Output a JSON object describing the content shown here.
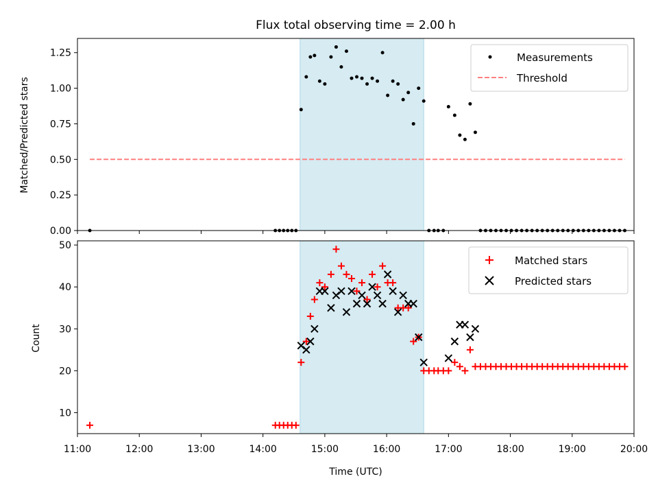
{
  "figure": {
    "title": "Flux total observing time = 2.00 h",
    "shaded_span": {
      "start": "14:36",
      "end": "16:36",
      "color": "#add8e6"
    }
  },
  "chart_data": [
    {
      "type": "scatter",
      "id": "ratio",
      "title": "Flux total observing time = 2.00 h",
      "xlabel": "",
      "ylabel": "Matched/Predicted stars",
      "xlim": [
        "11:00",
        "20:00"
      ],
      "ylim": [
        0,
        1.35
      ],
      "yticks": [
        0.0,
        0.25,
        0.5,
        0.75,
        1.0,
        1.25
      ],
      "ytick_labels": [
        "0.00",
        "0.25",
        "0.50",
        "0.75",
        "1.00",
        "1.25"
      ],
      "grid": false,
      "legend": {
        "position": "upper right",
        "entries": [
          "Measurements",
          "Threshold"
        ]
      },
      "series": [
        {
          "name": "Measurements",
          "marker": "dot",
          "color": "#000000",
          "points": [
            [
              "11:12",
              0
            ],
            [
              "14:12",
              0
            ],
            [
              "14:16",
              0
            ],
            [
              "14:20",
              0
            ],
            [
              "14:24",
              0
            ],
            [
              "14:28",
              0
            ],
            [
              "14:32",
              0
            ],
            [
              "14:37",
              0.85
            ],
            [
              "14:42",
              1.08
            ],
            [
              "14:46",
              1.22
            ],
            [
              "14:50",
              1.23
            ],
            [
              "14:55",
              1.05
            ],
            [
              "15:00",
              1.03
            ],
            [
              "15:06",
              1.22
            ],
            [
              "15:11",
              1.29
            ],
            [
              "15:16",
              1.15
            ],
            [
              "15:21",
              1.26
            ],
            [
              "15:26",
              1.07
            ],
            [
              "15:31",
              1.08
            ],
            [
              "15:36",
              1.07
            ],
            [
              "15:41",
              1.03
            ],
            [
              "15:46",
              1.07
            ],
            [
              "15:51",
              1.05
            ],
            [
              "15:56",
              1.25
            ],
            [
              "16:01",
              0.95
            ],
            [
              "16:06",
              1.05
            ],
            [
              "16:11",
              1.03
            ],
            [
              "16:16",
              0.92
            ],
            [
              "16:21",
              0.97
            ],
            [
              "16:26",
              0.75
            ],
            [
              "16:31",
              1.0
            ],
            [
              "16:36",
              0.91
            ],
            [
              "16:41",
              0
            ],
            [
              "16:46",
              0
            ],
            [
              "16:50",
              0
            ],
            [
              "16:55",
              0
            ],
            [
              "17:00",
              0.87
            ],
            [
              "17:06",
              0.81
            ],
            [
              "17:11",
              0.67
            ],
            [
              "17:16",
              0.64
            ],
            [
              "17:21",
              0.89
            ],
            [
              "17:26",
              0.69
            ],
            [
              "17:31",
              0
            ],
            [
              "17:36",
              0
            ],
            [
              "17:41",
              0
            ],
            [
              "17:46",
              0
            ],
            [
              "17:51",
              0
            ],
            [
              "17:56",
              0
            ],
            [
              "18:01",
              0
            ],
            [
              "18:06",
              0
            ],
            [
              "18:11",
              0
            ],
            [
              "18:16",
              0
            ],
            [
              "18:21",
              0
            ],
            [
              "18:26",
              0
            ],
            [
              "18:31",
              0
            ],
            [
              "18:36",
              0
            ],
            [
              "18:41",
              0
            ],
            [
              "18:46",
              0
            ],
            [
              "18:51",
              0
            ],
            [
              "18:56",
              0
            ],
            [
              "19:01",
              0
            ],
            [
              "19:06",
              0
            ],
            [
              "19:11",
              0
            ],
            [
              "19:16",
              0
            ],
            [
              "19:21",
              0
            ],
            [
              "19:26",
              0
            ],
            [
              "19:31",
              0
            ],
            [
              "19:36",
              0
            ],
            [
              "19:41",
              0
            ],
            [
              "19:46",
              0
            ],
            [
              "19:51",
              0
            ]
          ]
        },
        {
          "name": "Threshold",
          "style": "dashed-line",
          "color": "#ff7f7f",
          "points": [
            [
              "11:12",
              0.5
            ],
            [
              "19:51",
              0.5
            ]
          ]
        }
      ]
    },
    {
      "type": "scatter",
      "id": "counts",
      "xlabel": "Time (UTC)",
      "ylabel": "Count",
      "xlim": [
        "11:00",
        "20:00"
      ],
      "xticks": [
        "11:00",
        "12:00",
        "13:00",
        "14:00",
        "15:00",
        "16:00",
        "17:00",
        "18:00",
        "19:00",
        "20:00"
      ],
      "ylim": [
        5,
        51
      ],
      "yticks": [
        10,
        20,
        30,
        40,
        50
      ],
      "grid": false,
      "legend": {
        "position": "upper right",
        "entries": [
          "Matched stars",
          "Predicted stars"
        ]
      },
      "series": [
        {
          "name": "Matched stars",
          "marker": "plus",
          "color": "#ff0000",
          "points": [
            [
              "11:12",
              7
            ],
            [
              "14:12",
              7
            ],
            [
              "14:16",
              7
            ],
            [
              "14:20",
              7
            ],
            [
              "14:24",
              7
            ],
            [
              "14:28",
              7
            ],
            [
              "14:32",
              7
            ],
            [
              "14:37",
              22
            ],
            [
              "14:42",
              27
            ],
            [
              "14:46",
              33
            ],
            [
              "14:50",
              37
            ],
            [
              "14:55",
              41
            ],
            [
              "15:00",
              40
            ],
            [
              "15:06",
              43
            ],
            [
              "15:11",
              49
            ],
            [
              "15:16",
              45
            ],
            [
              "15:21",
              43
            ],
            [
              "15:26",
              42
            ],
            [
              "15:31",
              39
            ],
            [
              "15:36",
              41
            ],
            [
              "15:41",
              37
            ],
            [
              "15:46",
              43
            ],
            [
              "15:51",
              40
            ],
            [
              "15:56",
              45
            ],
            [
              "16:01",
              41
            ],
            [
              "16:06",
              41
            ],
            [
              "16:11",
              35
            ],
            [
              "16:16",
              35
            ],
            [
              "16:21",
              35
            ],
            [
              "16:26",
              27
            ],
            [
              "16:31",
              28
            ],
            [
              "16:36",
              20
            ],
            [
              "16:41",
              20
            ],
            [
              "16:46",
              20
            ],
            [
              "16:50",
              20
            ],
            [
              "16:55",
              20
            ],
            [
              "17:00",
              20
            ],
            [
              "17:06",
              22
            ],
            [
              "17:11",
              21
            ],
            [
              "17:16",
              20
            ],
            [
              "17:21",
              25
            ],
            [
              "17:26",
              21
            ],
            [
              "17:31",
              21
            ],
            [
              "17:36",
              21
            ],
            [
              "17:41",
              21
            ],
            [
              "17:46",
              21
            ],
            [
              "17:51",
              21
            ],
            [
              "17:56",
              21
            ],
            [
              "18:01",
              21
            ],
            [
              "18:06",
              21
            ],
            [
              "18:11",
              21
            ],
            [
              "18:16",
              21
            ],
            [
              "18:21",
              21
            ],
            [
              "18:26",
              21
            ],
            [
              "18:31",
              21
            ],
            [
              "18:36",
              21
            ],
            [
              "18:41",
              21
            ],
            [
              "18:46",
              21
            ],
            [
              "18:51",
              21
            ],
            [
              "18:56",
              21
            ],
            [
              "19:01",
              21
            ],
            [
              "19:06",
              21
            ],
            [
              "19:11",
              21
            ],
            [
              "19:16",
              21
            ],
            [
              "19:21",
              21
            ],
            [
              "19:26",
              21
            ],
            [
              "19:31",
              21
            ],
            [
              "19:36",
              21
            ],
            [
              "19:41",
              21
            ],
            [
              "19:46",
              21
            ],
            [
              "19:51",
              21
            ]
          ]
        },
        {
          "name": "Predicted stars",
          "marker": "x",
          "color": "#000000",
          "points": [
            [
              "14:37",
              26
            ],
            [
              "14:42",
              25
            ],
            [
              "14:46",
              27
            ],
            [
              "14:50",
              30
            ],
            [
              "14:55",
              39
            ],
            [
              "15:00",
              39
            ],
            [
              "15:06",
              35
            ],
            [
              "15:11",
              38
            ],
            [
              "15:16",
              39
            ],
            [
              "15:21",
              34
            ],
            [
              "15:26",
              39
            ],
            [
              "15:31",
              36
            ],
            [
              "15:36",
              38
            ],
            [
              "15:41",
              36
            ],
            [
              "15:46",
              40
            ],
            [
              "15:51",
              38
            ],
            [
              "15:56",
              36
            ],
            [
              "16:01",
              43
            ],
            [
              "16:06",
              39
            ],
            [
              "16:11",
              34
            ],
            [
              "16:16",
              38
            ],
            [
              "16:21",
              36
            ],
            [
              "16:26",
              36
            ],
            [
              "16:31",
              28
            ],
            [
              "16:36",
              22
            ],
            [
              "17:00",
              23
            ],
            [
              "17:06",
              27
            ],
            [
              "17:11",
              31
            ],
            [
              "17:16",
              31
            ],
            [
              "17:21",
              28
            ],
            [
              "17:26",
              30
            ]
          ]
        }
      ]
    }
  ]
}
